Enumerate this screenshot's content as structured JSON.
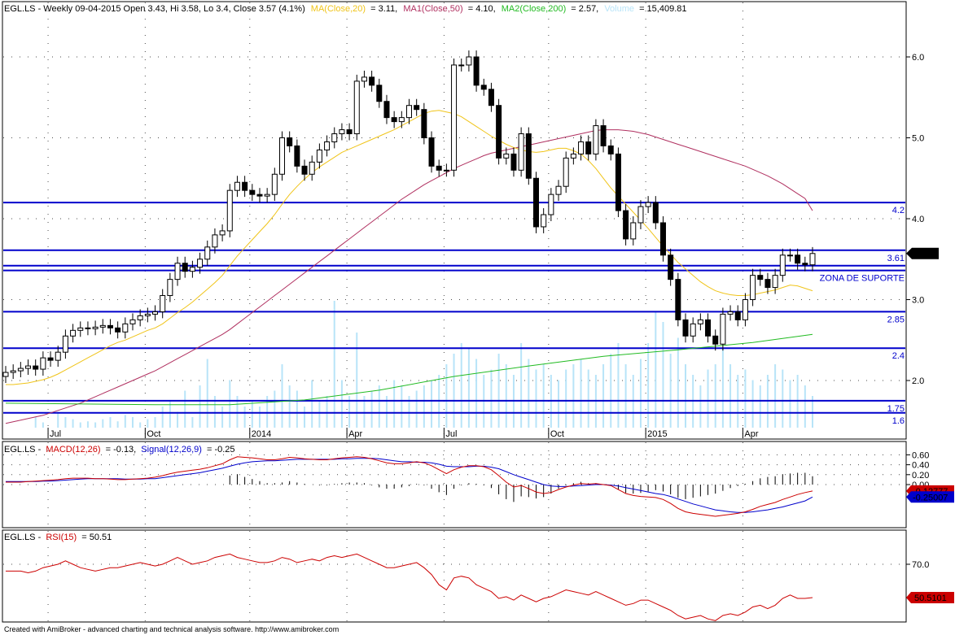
{
  "colors": {
    "candle_up": "#ffffff",
    "candle_down": "#000000",
    "ma20": "#f0c419",
    "ma50": "#b03060",
    "ma200": "#22bb22",
    "volume": "#b8e4f8",
    "hline": "#0000cc",
    "macd": "#cc0000",
    "signal": "#0000cc",
    "rsi": "#cc0000"
  },
  "header": {
    "prefix": "EGL.LS - Weekly 09-04-2015 Open 3.43, Hi 3.58, Lo 3.4, Close 3.57 (4.1%)",
    "ma20_label": "MA(Close,20)",
    "ma20_value": "= 3.11,",
    "ma50_label": "MA1(Close,50)",
    "ma50_value": "= 4.10,",
    "ma200_label": "MA2(Close,200)",
    "ma200_value": "= 2.57,",
    "volume_label": "Volume",
    "volume_value": "= 15,409.81"
  },
  "macd_header": {
    "prefix": "EGL.LS -",
    "macd_label": "MACD(12,26)",
    "macd_value": "= -0.13,",
    "signal_label": "Signal(12,26,9)",
    "signal_value": "= -0.25"
  },
  "rsi_header": {
    "prefix": "EGL.LS -",
    "rsi_label": "RSI(15)",
    "rsi_value": "= 50.51"
  },
  "footer": "Created with AmiBroker - advanced charting and technical analysis software. http://www.amibroker.com",
  "chart_data": {
    "type": "candlestick",
    "price_ticks": [
      {
        "label": "6.0",
        "value": 6.0
      },
      {
        "label": "5.0",
        "value": 5.0
      },
      {
        "label": "4.0",
        "value": 4.0
      },
      {
        "label": "3.0",
        "value": 3.0
      },
      {
        "label": "2.0",
        "value": 2.0
      }
    ],
    "time_ticks": [
      "Jul",
      "Oct",
      "2014",
      "Apr",
      "Jul",
      "Oct",
      "2015",
      "Apr"
    ],
    "horizontal_lines": [
      {
        "value": 4.2,
        "label": "4.2"
      },
      {
        "value": 3.61,
        "label": "3.61"
      },
      {
        "value": 3.42,
        "label": ""
      },
      {
        "value": 3.36,
        "label": "ZONA DE SUPORTE"
      },
      {
        "value": 2.85,
        "label": "2.85"
      },
      {
        "value": 2.4,
        "label": "2.4"
      },
      {
        "value": 1.75,
        "label": "1.75"
      },
      {
        "value": 1.6,
        "label": "1.6"
      }
    ],
    "last_price_tag": "3.57",
    "closes": [
      2.1,
      2.12,
      2.15,
      2.18,
      2.14,
      2.28,
      2.25,
      2.35,
      2.55,
      2.62,
      2.65,
      2.64,
      2.66,
      2.68,
      2.65,
      2.6,
      2.7,
      2.75,
      2.8,
      2.82,
      2.85,
      3.05,
      3.25,
      3.45,
      3.35,
      3.4,
      3.5,
      3.65,
      3.8,
      3.85,
      4.35,
      4.45,
      4.35,
      4.3,
      4.28,
      4.3,
      4.55,
      5.0,
      4.9,
      4.65,
      4.55,
      4.7,
      4.85,
      4.95,
      5.05,
      5.1,
      5.05,
      5.7,
      5.75,
      5.65,
      5.45,
      5.25,
      5.2,
      5.25,
      5.4,
      5.35,
      5.0,
      4.65,
      4.6,
      4.6,
      5.9,
      5.9,
      6.0,
      5.65,
      5.6,
      5.4,
      4.75,
      4.8,
      4.6,
      5.05,
      4.5,
      3.9,
      4.05,
      4.3,
      4.4,
      4.75,
      4.8,
      4.95,
      4.8,
      5.15,
      4.9,
      4.8,
      4.1,
      3.75,
      3.95,
      4.15,
      4.2,
      3.95,
      3.55,
      3.25,
      2.75,
      2.55,
      2.7,
      2.75,
      2.55,
      2.45,
      2.82,
      2.85,
      2.75,
      3.0,
      3.3,
      3.25,
      3.15,
      3.3,
      3.55,
      3.55,
      3.45,
      3.43,
      3.57
    ],
    "ma20": [
      1.95,
      1.95,
      1.96,
      1.97,
      1.99,
      2.01,
      2.04,
      2.08,
      2.13,
      2.18,
      2.23,
      2.28,
      2.33,
      2.38,
      2.43,
      2.47,
      2.5,
      2.54,
      2.58,
      2.62,
      2.65,
      2.7,
      2.77,
      2.84,
      2.9,
      2.97,
      3.05,
      3.13,
      3.21,
      3.3,
      3.42,
      3.54,
      3.64,
      3.74,
      3.84,
      3.94,
      4.05,
      4.18,
      4.3,
      4.4,
      4.49,
      4.57,
      4.64,
      4.7,
      4.76,
      4.82,
      4.86,
      4.9,
      4.94,
      4.98,
      5.02,
      5.06,
      5.1,
      5.15,
      5.2,
      5.25,
      5.3,
      5.33,
      5.34,
      5.32,
      5.3,
      5.26,
      5.2,
      5.14,
      5.08,
      5.02,
      4.97,
      4.92,
      4.88,
      4.85,
      4.83,
      4.82,
      4.83,
      4.85,
      4.87,
      4.87,
      4.84,
      4.8,
      4.72,
      4.62,
      4.5,
      4.38,
      4.28,
      4.18,
      4.08,
      3.98,
      3.88,
      3.77,
      3.66,
      3.56,
      3.46,
      3.38,
      3.3,
      3.22,
      3.16,
      3.11,
      3.08,
      3.06,
      3.05,
      3.05,
      3.06,
      3.08,
      3.1,
      3.12,
      3.15,
      3.18,
      3.17,
      3.14,
      3.11
    ],
    "ma50": [
      1.47,
      1.49,
      1.51,
      1.53,
      1.55,
      1.57,
      1.6,
      1.63,
      1.66,
      1.69,
      1.72,
      1.76,
      1.8,
      1.84,
      1.88,
      1.92,
      1.96,
      2.0,
      2.04,
      2.08,
      2.12,
      2.17,
      2.22,
      2.27,
      2.32,
      2.37,
      2.42,
      2.47,
      2.52,
      2.57,
      2.63,
      2.7,
      2.77,
      2.84,
      2.91,
      2.98,
      3.05,
      3.12,
      3.19,
      3.26,
      3.33,
      3.4,
      3.47,
      3.54,
      3.61,
      3.68,
      3.75,
      3.82,
      3.89,
      3.96,
      4.03,
      4.1,
      4.17,
      4.24,
      4.3,
      4.36,
      4.42,
      4.47,
      4.52,
      4.57,
      4.62,
      4.66,
      4.7,
      4.74,
      4.78,
      4.81,
      4.83,
      4.85,
      4.87,
      4.89,
      4.91,
      4.93,
      4.95,
      4.97,
      4.99,
      5.01,
      5.03,
      5.05,
      5.07,
      5.09,
      5.1,
      5.1,
      5.1,
      5.09,
      5.08,
      5.06,
      5.04,
      5.01,
      4.98,
      4.95,
      4.92,
      4.89,
      4.86,
      4.83,
      4.8,
      4.77,
      4.74,
      4.71,
      4.68,
      4.65,
      4.61,
      4.57,
      4.53,
      4.48,
      4.43,
      4.37,
      4.31,
      4.25,
      4.1
    ],
    "ma200_points": [
      [
        0,
        1.72
      ],
      [
        20,
        1.7
      ],
      [
        30,
        1.7
      ],
      [
        40,
        1.76
      ],
      [
        50,
        1.88
      ],
      [
        60,
        2.05
      ],
      [
        70,
        2.18
      ],
      [
        80,
        2.3
      ],
      [
        90,
        2.38
      ],
      [
        100,
        2.47
      ],
      [
        108,
        2.57
      ]
    ],
    "volume_bars": [
      0,
      0,
      0,
      0,
      0.1,
      0.05,
      0,
      0.15,
      0.1,
      0.08,
      0.05,
      0.06,
      0.05,
      0.08,
      0.1,
      0.06,
      0.12,
      0.1,
      0.05,
      0.08,
      0.1,
      0.2,
      0.25,
      0.15,
      0.35,
      0.1,
      0.4,
      0.65,
      0.3,
      0.2,
      0.45,
      0.3,
      0.2,
      0.25,
      0.2,
      0.3,
      0.35,
      0.6,
      0.4,
      0.35,
      0.2,
      0.45,
      0.25,
      0.3,
      1.2,
      0.45,
      0.3,
      0.9,
      0.3,
      0.35,
      0.4,
      0.3,
      0.45,
      0.4,
      0.3,
      0.35,
      0.4,
      0.45,
      0.5,
      0.6,
      0.7,
      0.8,
      0.75,
      0.65,
      0.5,
      0.55,
      0.7,
      0.6,
      0.5,
      0.8,
      0.65,
      0.55,
      0.6,
      0.5,
      0.45,
      0.55,
      0.6,
      0.65,
      0.55,
      0.5,
      0.6,
      0.7,
      0.8,
      0.6,
      0.5,
      0.65,
      0.8,
      1.1,
      1.0,
      0.7,
      0.85,
      0.6,
      0.5,
      0.4,
      0.55,
      0.6,
      0.75,
      0.6,
      0.5,
      0.55,
      0.45,
      0.4,
      0.5,
      0.6,
      0.55,
      0.45,
      0.5,
      0.4,
      0.3
    ],
    "macd_ticks": [
      {
        "label": "0.60",
        "value": 0.6
      },
      {
        "label": "0.40",
        "value": 0.4
      },
      {
        "label": "0.20",
        "value": 0.2
      },
      {
        "label": "0.00",
        "value": 0.0
      }
    ],
    "macd_tags": [
      {
        "label": "-0.12777",
        "value": -0.13,
        "color": "#cc0000"
      },
      {
        "label": "-0.25007",
        "value": -0.25,
        "color": "#0000cc"
      }
    ],
    "macd": [
      0.05,
      0.05,
      0.05,
      0.06,
      0.07,
      0.08,
      0.09,
      0.1,
      0.12,
      0.13,
      0.13,
      0.13,
      0.12,
      0.12,
      0.11,
      0.1,
      0.1,
      0.11,
      0.12,
      0.13,
      0.15,
      0.18,
      0.22,
      0.25,
      0.27,
      0.29,
      0.31,
      0.34,
      0.38,
      0.42,
      0.5,
      0.56,
      0.55,
      0.54,
      0.52,
      0.5,
      0.5,
      0.52,
      0.55,
      0.54,
      0.52,
      0.51,
      0.5,
      0.5,
      0.52,
      0.54,
      0.55,
      0.56,
      0.55,
      0.52,
      0.48,
      0.44,
      0.42,
      0.42,
      0.44,
      0.46,
      0.44,
      0.38,
      0.3,
      0.22,
      0.3,
      0.35,
      0.38,
      0.38,
      0.36,
      0.3,
      0.18,
      0.05,
      -0.05,
      -0.02,
      -0.08,
      -0.15,
      -0.18,
      -0.16,
      -0.1,
      -0.05,
      -0.01,
      0.02,
      0.01,
      0.02,
      0.0,
      -0.02,
      -0.1,
      -0.18,
      -0.22,
      -0.24,
      -0.25,
      -0.26,
      -0.3,
      -0.38,
      -0.48,
      -0.55,
      -0.58,
      -0.6,
      -0.62,
      -0.64,
      -0.62,
      -0.6,
      -0.58,
      -0.55,
      -0.5,
      -0.44,
      -0.4,
      -0.36,
      -0.3,
      -0.25,
      -0.2,
      -0.16,
      -0.13
    ],
    "signal": [
      0.06,
      0.06,
      0.06,
      0.06,
      0.06,
      0.07,
      0.07,
      0.08,
      0.09,
      0.1,
      0.11,
      0.12,
      0.12,
      0.12,
      0.12,
      0.12,
      0.11,
      0.11,
      0.11,
      0.12,
      0.12,
      0.14,
      0.16,
      0.18,
      0.2,
      0.22,
      0.24,
      0.27,
      0.3,
      0.33,
      0.37,
      0.41,
      0.44,
      0.46,
      0.47,
      0.48,
      0.48,
      0.49,
      0.5,
      0.51,
      0.51,
      0.51,
      0.51,
      0.51,
      0.51,
      0.52,
      0.52,
      0.53,
      0.53,
      0.53,
      0.52,
      0.5,
      0.48,
      0.46,
      0.46,
      0.45,
      0.45,
      0.44,
      0.41,
      0.37,
      0.36,
      0.36,
      0.36,
      0.37,
      0.37,
      0.35,
      0.32,
      0.26,
      0.2,
      0.15,
      0.1,
      0.05,
      0.0,
      -0.03,
      -0.04,
      -0.04,
      -0.03,
      -0.02,
      -0.01,
      0.0,
      0.0,
      -0.01,
      -0.03,
      -0.06,
      -0.09,
      -0.12,
      -0.15,
      -0.18,
      -0.2,
      -0.24,
      -0.29,
      -0.34,
      -0.39,
      -0.43,
      -0.47,
      -0.51,
      -0.53,
      -0.55,
      -0.56,
      -0.56,
      -0.55,
      -0.53,
      -0.51,
      -0.48,
      -0.45,
      -0.41,
      -0.37,
      -0.33,
      -0.25
    ],
    "macd_hist_start": 30,
    "rsi_ticks": [
      {
        "label": "70.0",
        "value": 70.0
      }
    ],
    "rsi_tag": "50.5101",
    "rsi": [
      66,
      66,
      66,
      65,
      66,
      68,
      69,
      70,
      72,
      70,
      68,
      67,
      66,
      67,
      68,
      68,
      69,
      70,
      71,
      70,
      69,
      70,
      72,
      74,
      72,
      70,
      71,
      72,
      74,
      75,
      76,
      74,
      73,
      72,
      71,
      71,
      72,
      74,
      73,
      71,
      72,
      73,
      72,
      74,
      75,
      74,
      75,
      76,
      74,
      72,
      70,
      68,
      68,
      69,
      70,
      71,
      68,
      64,
      58,
      55,
      62,
      63,
      62,
      58,
      56,
      54,
      50,
      51,
      49,
      52,
      50,
      48,
      50,
      51,
      53,
      55,
      54,
      53,
      52,
      54,
      52,
      50,
      48,
      46,
      47,
      49,
      49,
      47,
      45,
      43,
      40,
      38,
      39,
      40,
      38,
      37,
      40,
      41,
      40,
      42,
      45,
      46,
      44,
      46,
      50,
      52,
      50,
      50,
      50.5
    ]
  }
}
